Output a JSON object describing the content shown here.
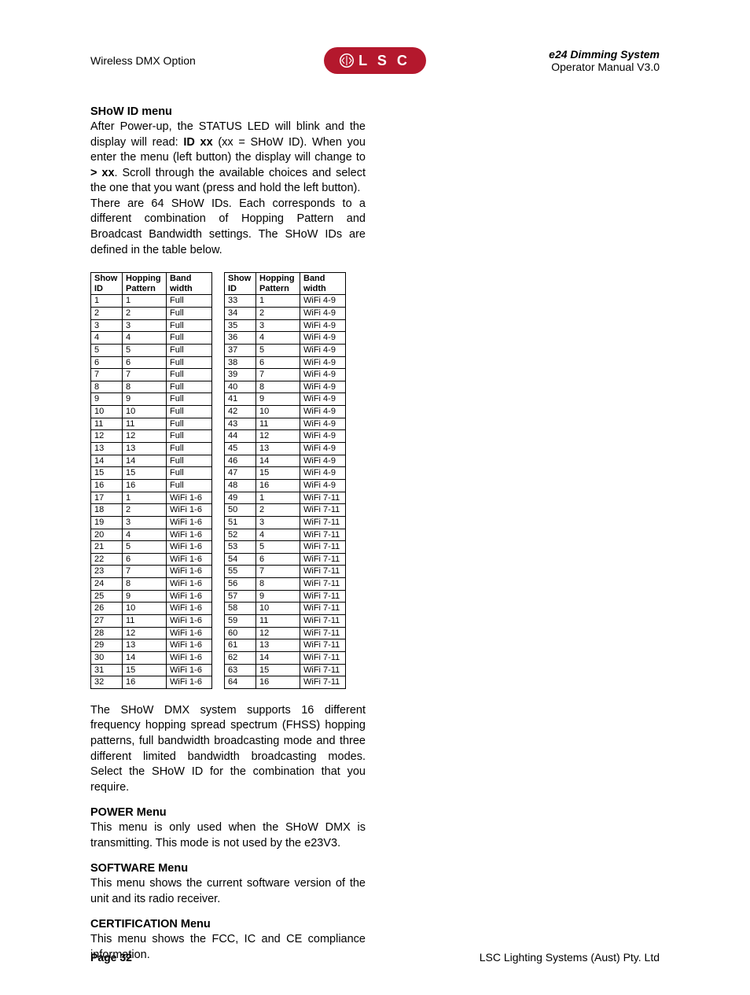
{
  "header": {
    "left": "Wireless DMX Option",
    "right_title": "e24 Dimming System",
    "right_sub": "Operator Manual V3.0",
    "logo_text": "L S C"
  },
  "sections": {
    "show_id": {
      "title": "SHoW ID menu",
      "p1a": "After Power-up, the STATUS LED will blink and the display will read: ",
      "p1b": "ID xx",
      "p1c": " (xx = SHoW ID). When you enter the menu (left button) the display will change to ",
      "p1d": "> xx",
      "p1e": ". Scroll through the available choices and select the one that you want (press and hold the left button).",
      "p2": "There are 64 SHoW IDs. Each corresponds to a different combination of Hopping Pattern and Broadcast Bandwidth settings. The SHoW IDs are defined in the table below.",
      "p3": "The SHoW DMX system supports 16 different frequency hopping spread spectrum (FHSS) hopping patterns, full bandwidth broadcasting mode and three different limited bandwidth broadcasting modes. Select the SHoW ID for the combination that you require."
    },
    "power": {
      "title": "POWER Menu",
      "p": "This menu is only used when the SHoW DMX is transmitting. This mode is not used by the e23V3."
    },
    "software": {
      "title": "SOFTWARE Menu",
      "p": "This menu shows the current software version of the unit and its radio receiver."
    },
    "cert": {
      "title": "CERTIFICATION Menu",
      "p": "This menu shows the FCC, IC and CE compliance information."
    }
  },
  "table": {
    "headers": {
      "show_id_1": "Show",
      "show_id_2": "ID",
      "hp_1": "Hopping",
      "hp_2": "Pattern",
      "bw_1": "Band",
      "bw_2": "width"
    },
    "rows": [
      {
        "a": "1",
        "b": "1",
        "c": "Full",
        "d": "33",
        "e": "1",
        "f": "WiFi 4-9"
      },
      {
        "a": "2",
        "b": "2",
        "c": "Full",
        "d": "34",
        "e": "2",
        "f": "WiFi 4-9"
      },
      {
        "a": "3",
        "b": "3",
        "c": "Full",
        "d": "35",
        "e": "3",
        "f": "WiFi 4-9"
      },
      {
        "a": "4",
        "b": "4",
        "c": "Full",
        "d": "36",
        "e": "4",
        "f": "WiFi 4-9"
      },
      {
        "a": "5",
        "b": "5",
        "c": "Full",
        "d": "37",
        "e": "5",
        "f": "WiFi 4-9"
      },
      {
        "a": "6",
        "b": "6",
        "c": "Full",
        "d": "38",
        "e": "6",
        "f": "WiFi 4-9"
      },
      {
        "a": "7",
        "b": "7",
        "c": "Full",
        "d": "39",
        "e": "7",
        "f": "WiFi 4-9"
      },
      {
        "a": "8",
        "b": "8",
        "c": "Full",
        "d": "40",
        "e": "8",
        "f": "WiFi 4-9"
      },
      {
        "a": "9",
        "b": "9",
        "c": "Full",
        "d": "41",
        "e": "9",
        "f": "WiFi 4-9"
      },
      {
        "a": "10",
        "b": "10",
        "c": "Full",
        "d": "42",
        "e": "10",
        "f": "WiFi 4-9"
      },
      {
        "a": "11",
        "b": "11",
        "c": "Full",
        "d": "43",
        "e": "11",
        "f": "WiFi 4-9"
      },
      {
        "a": "12",
        "b": "12",
        "c": "Full",
        "d": "44",
        "e": "12",
        "f": "WiFi 4-9"
      },
      {
        "a": "13",
        "b": "13",
        "c": "Full",
        "d": "45",
        "e": "13",
        "f": "WiFi 4-9"
      },
      {
        "a": "14",
        "b": "14",
        "c": "Full",
        "d": "46",
        "e": "14",
        "f": "WiFi 4-9"
      },
      {
        "a": "15",
        "b": "15",
        "c": "Full",
        "d": "47",
        "e": "15",
        "f": "WiFi 4-9"
      },
      {
        "a": "16",
        "b": "16",
        "c": "Full",
        "d": "48",
        "e": "16",
        "f": "WiFi 4-9"
      },
      {
        "a": "17",
        "b": "1",
        "c": "WiFi 1-6",
        "d": "49",
        "e": "1",
        "f": "WiFi 7-11"
      },
      {
        "a": "18",
        "b": "2",
        "c": "WiFi 1-6",
        "d": "50",
        "e": "2",
        "f": "WiFi 7-11"
      },
      {
        "a": "19",
        "b": "3",
        "c": "WiFi 1-6",
        "d": "51",
        "e": "3",
        "f": "WiFi 7-11"
      },
      {
        "a": "20",
        "b": "4",
        "c": "WiFi 1-6",
        "d": "52",
        "e": "4",
        "f": "WiFi 7-11"
      },
      {
        "a": "21",
        "b": "5",
        "c": "WiFi 1-6",
        "d": "53",
        "e": "5",
        "f": "WiFi 7-11"
      },
      {
        "a": "22",
        "b": "6",
        "c": "WiFi 1-6",
        "d": "54",
        "e": "6",
        "f": "WiFi 7-11"
      },
      {
        "a": "23",
        "b": "7",
        "c": "WiFi 1-6",
        "d": "55",
        "e": "7",
        "f": "WiFi 7-11"
      },
      {
        "a": "24",
        "b": "8",
        "c": "WiFi 1-6",
        "d": "56",
        "e": "8",
        "f": "WiFi 7-11"
      },
      {
        "a": "25",
        "b": "9",
        "c": "WiFi 1-6",
        "d": "57",
        "e": "9",
        "f": "WiFi 7-11"
      },
      {
        "a": "26",
        "b": "10",
        "c": "WiFi 1-6",
        "d": "58",
        "e": "10",
        "f": "WiFi 7-11"
      },
      {
        "a": "27",
        "b": "11",
        "c": "WiFi 1-6",
        "d": "59",
        "e": "11",
        "f": "WiFi 7-11"
      },
      {
        "a": "28",
        "b": "12",
        "c": "WiFi 1-6",
        "d": "60",
        "e": "12",
        "f": "WiFi 7-11"
      },
      {
        "a": "29",
        "b": "13",
        "c": "WiFi 1-6",
        "d": "61",
        "e": "13",
        "f": "WiFi 7-11"
      },
      {
        "a": "30",
        "b": "14",
        "c": "WiFi 1-6",
        "d": "62",
        "e": "14",
        "f": "WiFi 7-11"
      },
      {
        "a": "31",
        "b": "15",
        "c": "WiFi 1-6",
        "d": "63",
        "e": "15",
        "f": "WiFi 7-11"
      },
      {
        "a": "32",
        "b": "16",
        "c": "WiFi 1-6",
        "d": "64",
        "e": "16",
        "f": "WiFi 7-11"
      }
    ]
  },
  "footer": {
    "page_label": "Page 32",
    "company": "LSC Lighting Systems (Aust) Pty. Ltd"
  }
}
